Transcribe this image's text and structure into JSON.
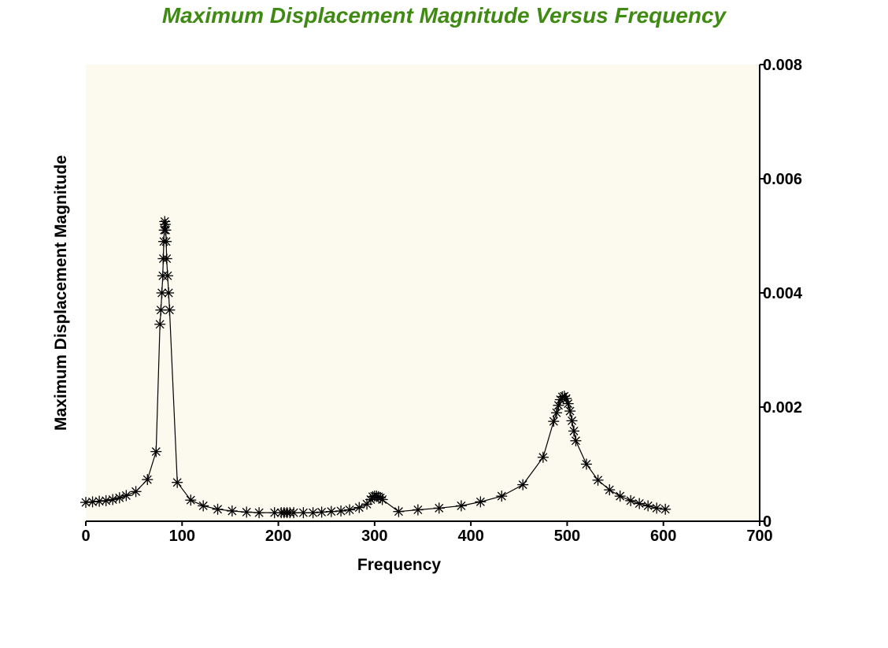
{
  "chart_data": {
    "type": "line",
    "title": "Maximum Displacement Magnitude Versus Frequency",
    "xlabel": "Frequency",
    "ylabel": "Maximum Displacement Magnitude",
    "xlim": [
      0,
      700
    ],
    "ylim": [
      0,
      0.008
    ],
    "x_ticks": [
      "0",
      "100",
      "200",
      "300",
      "400",
      "500",
      "600",
      "700"
    ],
    "y_ticks": [
      "0",
      "0.002",
      "0.004",
      "0.006",
      "0.008"
    ],
    "y_axis_side": "right",
    "grid": false,
    "marker": "asterisk",
    "colors": {
      "title": "#3f8a12",
      "plot_background": "#fcfaef",
      "line": "#000000"
    },
    "series": [
      {
        "x": [
          0,
          7,
          14,
          21,
          28,
          35,
          42,
          52,
          64,
          73,
          77,
          78,
          79,
          80,
          80.5,
          81,
          81.5,
          82,
          82.5,
          83,
          83.5,
          84,
          85,
          86,
          87,
          95,
          109,
          122,
          137,
          152,
          167,
          180,
          196,
          203,
          206,
          209,
          212,
          216,
          226,
          236,
          245,
          255,
          265,
          274,
          284,
          292,
          296,
          298,
          300,
          302,
          304,
          306,
          308,
          325,
          345,
          367,
          390,
          410,
          432,
          454,
          475,
          486,
          489,
          491,
          493,
          495,
          497,
          499,
          501,
          503,
          505,
          507,
          509,
          520,
          532,
          544,
          555,
          566,
          575,
          584,
          593,
          602
        ],
        "y": [
          0.00033,
          0.00034,
          0.00035,
          0.00036,
          0.00038,
          0.00041,
          0.00045,
          0.00052,
          0.00073,
          0.00122,
          0.00345,
          0.0037,
          0.004,
          0.0043,
          0.0046,
          0.0049,
          0.0051,
          0.00525,
          0.0052,
          0.0051,
          0.0049,
          0.0046,
          0.0043,
          0.004,
          0.0037,
          0.00068,
          0.00037,
          0.00027,
          0.00021,
          0.00018,
          0.00016,
          0.00015,
          0.00015,
          0.00015,
          0.00015,
          0.00015,
          0.00015,
          0.00015,
          0.00015,
          0.00015,
          0.00016,
          0.00017,
          0.00018,
          0.0002,
          0.00024,
          0.0003,
          0.00038,
          0.00043,
          0.00044,
          0.00044,
          0.00043,
          0.00041,
          0.00038,
          0.00017,
          0.0002,
          0.00023,
          0.00027,
          0.00034,
          0.00044,
          0.00064,
          0.00112,
          0.00175,
          0.0019,
          0.00203,
          0.00213,
          0.00218,
          0.00219,
          0.00215,
          0.00206,
          0.00193,
          0.00176,
          0.00158,
          0.00141,
          0.001,
          0.00072,
          0.00055,
          0.00044,
          0.00036,
          0.00031,
          0.00027,
          0.00023,
          0.00021
        ]
      }
    ]
  }
}
